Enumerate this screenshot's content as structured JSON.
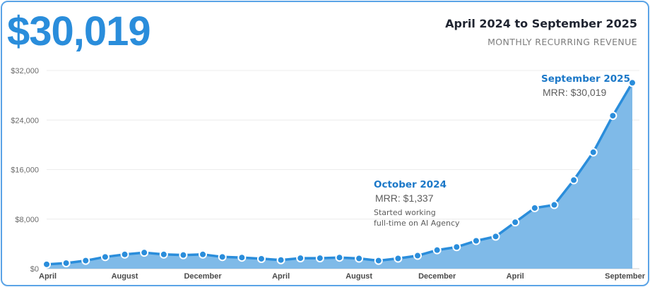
{
  "header": {
    "big_value": "$30,019",
    "period": "April 2024 to September 2025",
    "subtitle": "MONTHLY RECURRING REVENUE"
  },
  "colors": {
    "accent": "#2a8ddb",
    "line": "#2a8ddb",
    "fill": "#7fbae8",
    "frame": "#5aa3e6"
  },
  "chart_data": {
    "type": "area",
    "title": "",
    "xlabel": "",
    "ylabel": "",
    "ylim": [
      0,
      32000
    ],
    "yticks": [
      {
        "value": 0,
        "label": "$0"
      },
      {
        "value": 8000,
        "label": "$8,000"
      },
      {
        "value": 16000,
        "label": "$16,000"
      },
      {
        "value": 24000,
        "label": "$24,000"
      },
      {
        "value": 32000,
        "label": "$32,000"
      }
    ],
    "xticks": [
      {
        "index": 0,
        "label": "April"
      },
      {
        "index": 8,
        "label": "August"
      },
      {
        "index": 16,
        "label": "December"
      },
      {
        "index": 24,
        "label": "April"
      },
      {
        "index": 32,
        "label": "August"
      },
      {
        "index": 40,
        "label": "December"
      },
      {
        "index": 48,
        "label": "April"
      },
      {
        "index": 60,
        "label": "September"
      }
    ],
    "grid": true,
    "markers": true,
    "series": [
      {
        "x": [
          0,
          2,
          4,
          6,
          8,
          10,
          12,
          14,
          16,
          18,
          20,
          22,
          24,
          26,
          28,
          30,
          32,
          34,
          36,
          38,
          40,
          42,
          44,
          46,
          48,
          50,
          52,
          54,
          56,
          58,
          60
        ],
        "values": [
          700,
          900,
          1300,
          1900,
          2300,
          2600,
          2300,
          2200,
          2300,
          1900,
          1800,
          1600,
          1400,
          1700,
          1700,
          1800,
          1650,
          1300,
          1650,
          2100,
          3000,
          3500,
          4500,
          5200,
          7500,
          9800,
          10300,
          14300,
          18800,
          24700,
          30019
        ]
      }
    ],
    "annotations": [
      {
        "title": "October 2024",
        "value_label": "MRR: $1,337",
        "note": [
          "Started working",
          "full-time on AI Agency"
        ]
      },
      {
        "title": "September 2025",
        "value_label": "MRR: $30,019"
      }
    ]
  }
}
